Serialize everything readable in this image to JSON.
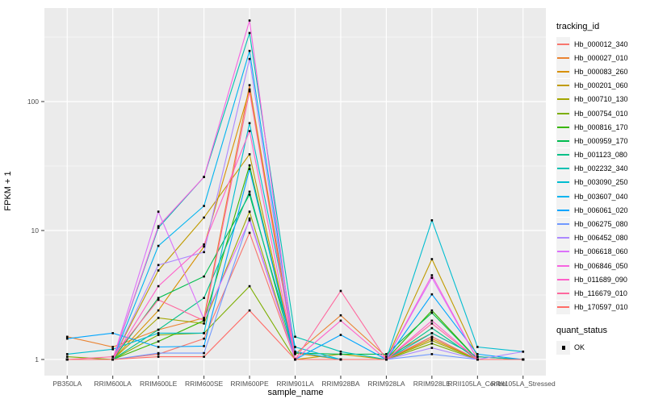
{
  "chart_data": {
    "type": "line",
    "xlabel": "sample_name",
    "ylabel": "FPKM + 1",
    "y_scale": "log10",
    "y_ticks": [
      1,
      10,
      100
    ],
    "y_minor_ticks": [
      3.162,
      31.62,
      316.2
    ],
    "ylim": [
      1,
      460
    ],
    "legend_color_title": "tracking_id",
    "legend_shape_title": "quant_status",
    "quant_status_label": "OK",
    "point_shape": "black-square",
    "panel_bg": "#ebebeb",
    "grid_color": "#ffffff",
    "categories": [
      "PB350LA",
      "RRIM600LA",
      "RRIM600LE",
      "RRIM600SE",
      "RRIM600PE",
      "RRIM901LA",
      "RRIM928BA",
      "RRIM928LA",
      "RRIM928LE",
      "RRII105LA_Control",
      "RRII105LA_Stressed"
    ],
    "series": [
      {
        "name": "Hb_000012_340",
        "color": "#F8766D",
        "values": [
          1.0,
          1.0,
          1.1,
          1.45,
          9.6,
          1.0,
          1.0,
          1.0,
          1.5,
          1.0,
          1.0
        ]
      },
      {
        "name": "Hb_000027_010",
        "color": "#EA8331",
        "values": [
          1.5,
          1.25,
          1.7,
          2.1,
          134,
          1.1,
          2.2,
          1.05,
          1.6,
          1.05,
          1.0
        ]
      },
      {
        "name": "Hb_000083_260",
        "color": "#D89000",
        "values": [
          1.0,
          1.0,
          2.4,
          7.5,
          124,
          1.12,
          1.0,
          1.0,
          1.45,
          1.0,
          1.0
        ]
      },
      {
        "name": "Hb_000201_060",
        "color": "#C09B00",
        "values": [
          1.0,
          1.0,
          4.9,
          12.6,
          39,
          1.0,
          1.1,
          1.0,
          6.0,
          1.05,
          1.0
        ]
      },
      {
        "name": "Hb_000710_130",
        "color": "#A3A500",
        "values": [
          1.0,
          1.0,
          2.1,
          1.9,
          14,
          1.0,
          1.0,
          1.0,
          1.4,
          1.0,
          1.0
        ]
      },
      {
        "name": "Hb_000754_010",
        "color": "#7CAE00",
        "values": [
          1.05,
          1.0,
          1.55,
          1.6,
          3.7,
          1.0,
          1.0,
          1.0,
          1.33,
          1.0,
          1.0
        ]
      },
      {
        "name": "Hb_000816_170",
        "color": "#39B600",
        "values": [
          1.0,
          1.0,
          1.38,
          2.0,
          32,
          1.0,
          1.0,
          1.0,
          2.4,
          1.0,
          1.0
        ]
      },
      {
        "name": "Hb_000959_170",
        "color": "#00BB4E",
        "values": [
          1.0,
          1.0,
          3.0,
          4.4,
          19,
          1.12,
          1.1,
          1.1,
          2.3,
          1.0,
          1.0
        ]
      },
      {
        "name": "Hb_001123_080",
        "color": "#00C087",
        "values": [
          1.0,
          1.0,
          1.7,
          3.0,
          20,
          1.0,
          1.0,
          1.0,
          1.75,
          1.0,
          1.0
        ]
      },
      {
        "name": "Hb_002232_340",
        "color": "#00C0B2",
        "values": [
          1.0,
          1.0,
          10.5,
          26,
          340,
          1.5,
          1.15,
          1.0,
          1.6,
          1.05,
          1.0
        ]
      },
      {
        "name": "Hb_003090_250",
        "color": "#00BDD0",
        "values": [
          1.1,
          1.2,
          1.6,
          1.6,
          68,
          1.25,
          1.0,
          1.0,
          12.0,
          1.25,
          1.15
        ]
      },
      {
        "name": "Hb_003607_040",
        "color": "#00B4EF",
        "values": [
          1.0,
          1.0,
          7.6,
          15.5,
          247,
          1.15,
          1.0,
          1.0,
          1.5,
          1.0,
          1.0
        ]
      },
      {
        "name": "Hb_006061_020",
        "color": "#00A5FF",
        "values": [
          1.45,
          1.6,
          1.25,
          1.27,
          30,
          1.0,
          1.55,
          1.0,
          3.2,
          1.1,
          1.0
        ]
      },
      {
        "name": "Hb_006275_080",
        "color": "#7099FF",
        "values": [
          1.0,
          1.0,
          1.12,
          1.12,
          12.4,
          1.0,
          1.0,
          1.0,
          1.1,
          1.0,
          1.0
        ]
      },
      {
        "name": "Hb_006452_080",
        "color": "#AC88FF",
        "values": [
          1.0,
          1.0,
          5.4,
          6.8,
          214,
          1.0,
          1.0,
          1.0,
          1.23,
          1.0,
          1.15
        ]
      },
      {
        "name": "Hb_006618_060",
        "color": "#DC71FA",
        "values": [
          1.0,
          1.0,
          14.0,
          2.05,
          12.0,
          1.0,
          1.0,
          1.0,
          4.3,
          1.0,
          1.0
        ]
      },
      {
        "name": "Hb_006846_050",
        "color": "#F763E0",
        "values": [
          1.0,
          1.0,
          10.8,
          26,
          425,
          1.0,
          1.0,
          1.0,
          4.5,
          1.0,
          1.0
        ]
      },
      {
        "name": "Hb_011689_090",
        "color": "#FF61C9",
        "values": [
          1.0,
          1.0,
          3.7,
          7.8,
          59,
          1.0,
          2.0,
          1.0,
          2.0,
          1.0,
          1.0
        ]
      },
      {
        "name": "Hb_116679_010",
        "color": "#FF689E",
        "values": [
          1.0,
          1.05,
          2.9,
          2.0,
          120,
          1.0,
          3.4,
          1.0,
          1.9,
          1.0,
          1.0
        ]
      },
      {
        "name": "Hb_170597_010",
        "color": "#FF6C67",
        "values": [
          1.0,
          1.0,
          1.05,
          1.05,
          2.4,
          1.0,
          1.0,
          1.0,
          1.5,
          1.0,
          1.0
        ]
      }
    ]
  }
}
